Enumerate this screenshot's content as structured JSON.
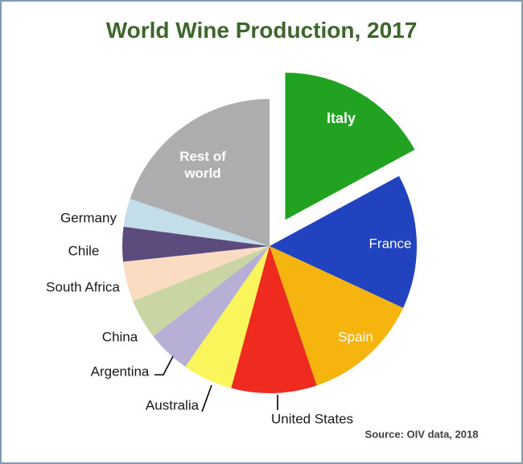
{
  "chart_data": {
    "type": "pie",
    "title": "World Wine Production, 2017",
    "source": "Source: OIV data, 2018",
    "legend_position": "none",
    "start_angle_deg": 0,
    "direction": "clockwise",
    "value_unit": "percent share of world production (estimated from slice angles)",
    "label_style": "large slices labeled inside in white; small slices labeled outside in black, some with leader lines",
    "slices": [
      {
        "label": "Italy",
        "value": 17.1,
        "color": "#21A221",
        "exploded": true,
        "label_placement": "inside"
      },
      {
        "label": "France",
        "value": 14.8,
        "color": "#2143C0",
        "exploded": false,
        "label_placement": "inside"
      },
      {
        "label": "Spain",
        "value": 12.9,
        "color": "#F6B40F",
        "exploded": false,
        "label_placement": "inside"
      },
      {
        "label": "United States",
        "value": 9.4,
        "color": "#EF2A1E",
        "exploded": false,
        "label_placement": "outside"
      },
      {
        "label": "Australia",
        "value": 5.5,
        "color": "#FBF55C",
        "exploded": false,
        "label_placement": "outside"
      },
      {
        "label": "Argentina",
        "value": 4.8,
        "color": "#B7AFD5",
        "exploded": false,
        "label_placement": "outside"
      },
      {
        "label": "China",
        "value": 4.4,
        "color": "#C9D6A3",
        "exploded": false,
        "label_placement": "outside"
      },
      {
        "label": "South Africa",
        "value": 4.4,
        "color": "#F9DCC2",
        "exploded": false,
        "label_placement": "outside"
      },
      {
        "label": "Chile",
        "value": 3.8,
        "color": "#5C4B7D",
        "exploded": false,
        "label_placement": "outside"
      },
      {
        "label": "Germany",
        "value": 3.1,
        "color": "#C3DDE9",
        "exploded": false,
        "label_placement": "outside"
      },
      {
        "label": "Rest of world",
        "value": 19.8,
        "color": "#ADADAF",
        "exploded": false,
        "label_placement": "inside"
      }
    ]
  },
  "colors": {
    "title_text": "#3C662B",
    "frame_border": "#7E9DB5",
    "background": "#FFFFFF",
    "inside_label_text": "#FFFFFF",
    "outside_label_text": "#1A1A1A",
    "source_text": "#3F3F3F",
    "leader_line": "#000000"
  }
}
